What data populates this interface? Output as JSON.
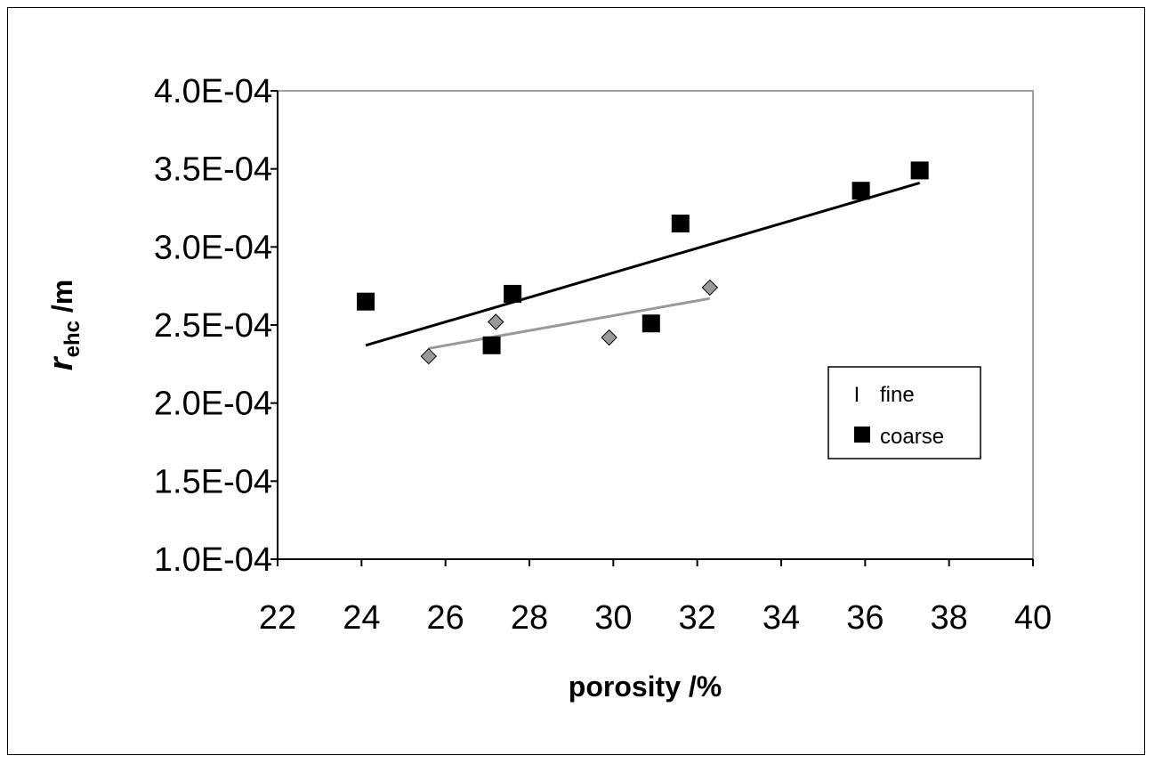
{
  "chart_data": {
    "type": "scatter",
    "xlabel": "porosity  /%",
    "ylabel_main": "r",
    "ylabel_sub": "ehc",
    "ylabel_unit": " /m",
    "xlim": [
      22,
      40
    ],
    "ylim": [
      0.0001,
      0.0004
    ],
    "x_ticks": [
      "22",
      "24",
      "26",
      "28",
      "30",
      "32",
      "34",
      "36",
      "38",
      "40"
    ],
    "y_ticks": [
      "1.0E-04",
      "1.5E-04",
      "2.0E-04",
      "2.5E-04",
      "3.0E-04",
      "3.5E-04",
      "4.0E-04"
    ],
    "legend_position": "right",
    "series": [
      {
        "name": "fine",
        "legend_marker": "I",
        "marker": "diamond",
        "color": "#999999",
        "points": [
          [
            25.6,
            0.00023
          ],
          [
            27.2,
            0.000252
          ],
          [
            29.9,
            0.000242
          ],
          [
            32.3,
            0.000274
          ]
        ],
        "trendline": [
          [
            25.6,
            0.000235
          ],
          [
            32.3,
            0.000267
          ]
        ]
      },
      {
        "name": "coarse",
        "marker": "square",
        "color": "#000000",
        "points": [
          [
            24.1,
            0.000265
          ],
          [
            27.1,
            0.000237
          ],
          [
            27.6,
            0.00027
          ],
          [
            30.9,
            0.000251
          ],
          [
            31.6,
            0.000315
          ],
          [
            35.9,
            0.000336
          ],
          [
            37.3,
            0.000349
          ]
        ],
        "trendline": [
          [
            24.1,
            0.000237
          ],
          [
            37.3,
            0.000341
          ]
        ]
      }
    ]
  }
}
